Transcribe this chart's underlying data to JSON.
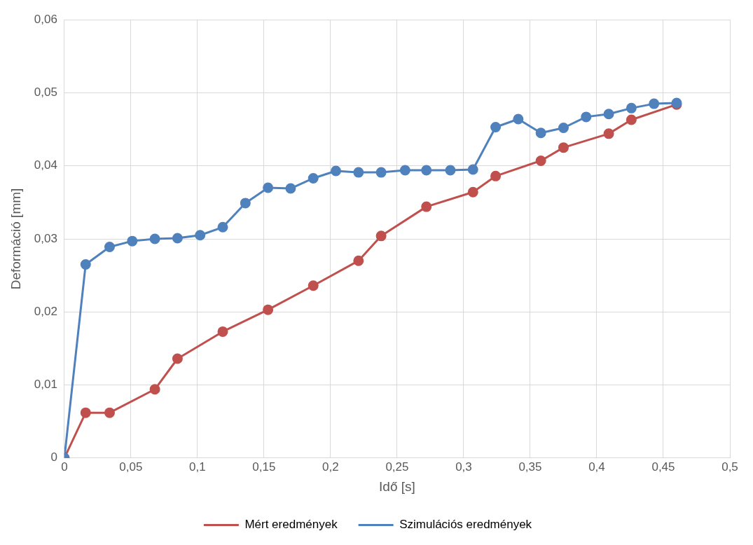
{
  "chart_data": {
    "type": "line",
    "xlabel": "Idő [s]",
    "ylabel": "Deformáció [mm]",
    "xlim": [
      0,
      0.5
    ],
    "ylim": [
      0,
      0.06
    ],
    "xticks": [
      0,
      {
        "value": 0.05,
        "label": "0,05"
      },
      {
        "value": 0.1,
        "label": "0,1"
      },
      {
        "value": 0.15,
        "label": "0,15"
      },
      {
        "value": 0.2,
        "label": "0,2"
      },
      {
        "value": 0.25,
        "label": "0,25"
      },
      {
        "value": 0.3,
        "label": "0,3"
      },
      {
        "value": 0.35,
        "label": "0,35"
      },
      {
        "value": 0.4,
        "label": "0,4"
      },
      {
        "value": 0.45,
        "label": "0,45"
      },
      {
        "value": 0.5,
        "label": "0,5"
      }
    ],
    "yticks": [
      0,
      {
        "value": 0.01,
        "label": "0,01"
      },
      {
        "value": 0.02,
        "label": "0,02"
      },
      {
        "value": 0.03,
        "label": "0,03"
      },
      {
        "value": 0.04,
        "label": "0,04"
      },
      {
        "value": 0.05,
        "label": "0,05"
      },
      {
        "value": 0.06,
        "label": "0,06"
      }
    ],
    "grid": true,
    "legend": "bottom",
    "marker": "circle",
    "line_style": "solid",
    "series": [
      {
        "name": "Mért eredmények",
        "color": "#c0504d",
        "x": [
          0,
          0.016,
          0.034,
          0.068,
          0.085,
          0.119,
          0.153,
          0.187,
          0.221,
          0.238,
          0.272,
          0.307,
          0.324,
          0.358,
          0.375,
          0.409,
          0.426,
          0.46
        ],
        "values": [
          0,
          0.0062,
          0.0062,
          0.0094,
          0.0136,
          0.0173,
          0.0203,
          0.0236,
          0.027,
          0.0304,
          0.0344,
          0.0364,
          0.0386,
          0.0407,
          0.0425,
          0.0444,
          0.0463,
          0.0484
        ]
      },
      {
        "name": "Szimulációs eredmények",
        "color": "#4f81bd",
        "x": [
          0,
          0.016,
          0.034,
          0.051,
          0.068,
          0.085,
          0.102,
          0.119,
          0.136,
          0.153,
          0.17,
          0.187,
          0.204,
          0.221,
          0.238,
          0.256,
          0.272,
          0.29,
          0.307,
          0.324,
          0.341,
          0.358,
          0.375,
          0.392,
          0.409,
          0.426,
          0.443,
          0.46
        ],
        "values": [
          0,
          0.0265,
          0.0289,
          0.0297,
          0.03,
          0.0301,
          0.0305,
          0.0316,
          0.0349,
          0.037,
          0.0369,
          0.0383,
          0.0393,
          0.0391,
          0.0391,
          0.0394,
          0.0394,
          0.0394,
          0.0395,
          0.0453,
          0.0464,
          0.0445,
          0.0452,
          0.0467,
          0.0471,
          0.0479,
          0.0485,
          0.0486
        ]
      }
    ]
  }
}
